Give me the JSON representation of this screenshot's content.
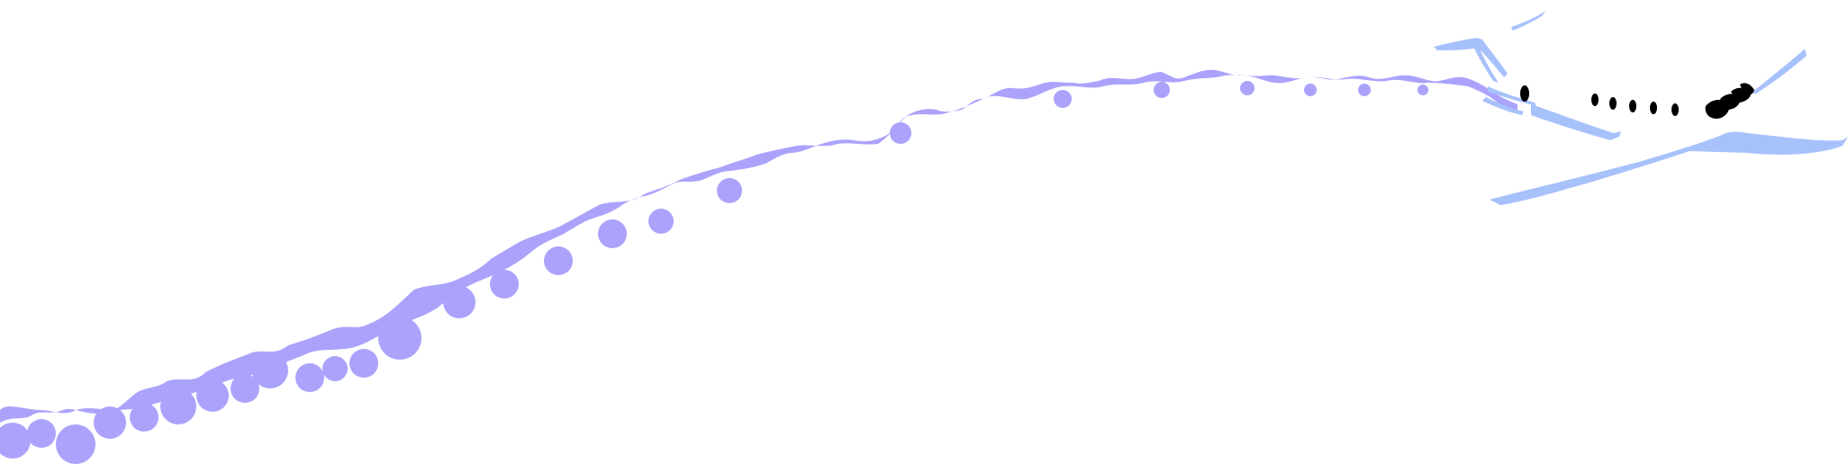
{
  "scene": {
    "subject": "airplane-with-contrail",
    "colors": {
      "background": "#ffffff",
      "contrail": "#aba3fb",
      "airplane_outline": "#a7c1fb",
      "windows": "#000000"
    },
    "icons": [
      "airplane-icon",
      "contrail-cloud"
    ]
  }
}
